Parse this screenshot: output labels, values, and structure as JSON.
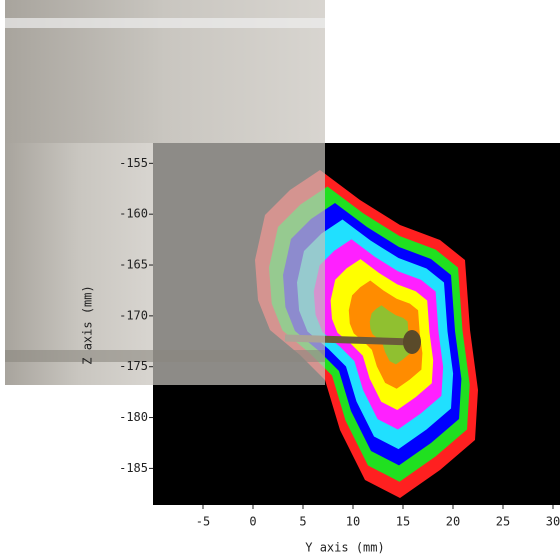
{
  "chart_data": {
    "type": "contour",
    "xlabel": "Y axis (mm)",
    "ylabel": "Z axis (mm)",
    "xlim": [
      -10,
      30.7
    ],
    "xticks": [
      -5,
      0,
      5,
      10,
      15,
      20,
      25,
      30
    ],
    "ylim": [
      -188.6,
      -153
    ],
    "yticks": [
      -155,
      -160,
      -165,
      -170,
      -175,
      -180,
      -185
    ]
  }
}
